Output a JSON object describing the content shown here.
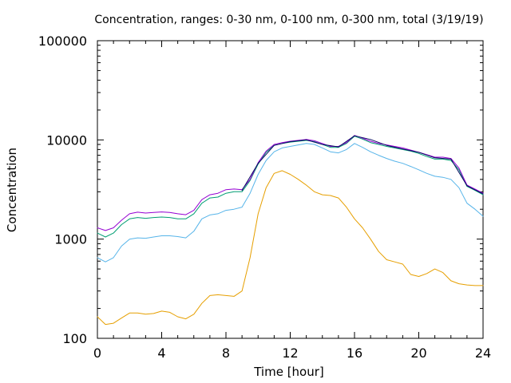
{
  "chart_data": {
    "type": "line",
    "title": "Concentration, ranges: 0-30 nm, 0-100 nm, 0-300 nm, total (3/19/19)",
    "xlabel": "Time [hour]",
    "ylabel": "Concentration",
    "xlim": [
      0,
      24
    ],
    "ylim": [
      100,
      100000
    ],
    "yscale": "log",
    "grid": false,
    "legend": "none",
    "x_ticks": [
      0,
      4,
      8,
      12,
      16,
      20,
      24
    ],
    "x_tick_labels": [
      "0",
      "4",
      "8",
      "12",
      "16",
      "20",
      "24"
    ],
    "y_ticks": [
      100,
      1000,
      10000,
      100000
    ],
    "y_tick_labels": [
      "100",
      "1000",
      "10000",
      "100000"
    ],
    "series": [
      {
        "color": "#e69f00",
        "x": [
          0,
          0.5,
          1,
          1.5,
          2,
          2.5,
          3,
          3.5,
          4,
          4.5,
          5,
          5.5,
          6,
          6.5,
          7,
          7.5,
          8,
          8.5,
          9,
          9.5,
          10,
          10.5,
          11,
          11.5,
          12,
          12.5,
          13,
          13.5,
          14,
          14.5,
          15,
          15.5,
          16,
          16.5,
          17,
          17.5,
          18,
          18.5,
          19,
          19.5,
          20,
          20.5,
          21,
          21.5,
          22,
          22.5,
          23,
          23.5,
          24
        ],
        "y": [
          165,
          138,
          142,
          160,
          180,
          180,
          175,
          178,
          188,
          183,
          165,
          157,
          175,
          225,
          270,
          275,
          270,
          265,
          300,
          650,
          1800,
          3300,
          4600,
          4900,
          4500,
          4000,
          3500,
          3000,
          2800,
          2750,
          2600,
          2100,
          1600,
          1300,
          1000,
          750,
          620,
          590,
          560,
          440,
          420,
          450,
          500,
          460,
          380,
          355,
          345,
          340,
          340
        ]
      },
      {
        "color": "#56b4e9",
        "x": [
          0,
          0.5,
          1,
          1.5,
          2,
          2.5,
          3,
          3.5,
          4,
          4.5,
          5,
          5.5,
          6,
          6.5,
          7,
          7.5,
          8,
          8.5,
          9,
          9.5,
          10,
          10.5,
          11,
          11.5,
          12,
          12.5,
          13,
          13.5,
          14,
          14.5,
          15,
          15.5,
          16,
          16.5,
          17,
          17.5,
          18,
          18.5,
          19,
          19.5,
          20,
          20.5,
          21,
          21.5,
          22,
          22.5,
          23,
          23.5,
          24
        ],
        "y": [
          650,
          590,
          650,
          850,
          1000,
          1030,
          1020,
          1050,
          1080,
          1080,
          1060,
          1030,
          1200,
          1600,
          1750,
          1800,
          1950,
          2000,
          2100,
          2900,
          4500,
          6200,
          7600,
          8300,
          8600,
          8900,
          9200,
          9000,
          8300,
          7600,
          7400,
          8000,
          9200,
          8400,
          7600,
          7000,
          6500,
          6100,
          5800,
          5400,
          5000,
          4600,
          4300,
          4200,
          4000,
          3300,
          2300,
          2000,
          1700
        ]
      },
      {
        "color": "#009e73",
        "x": [
          0,
          0.5,
          1,
          1.5,
          2,
          2.5,
          3,
          3.5,
          4,
          4.5,
          5,
          5.5,
          6,
          6.5,
          7,
          7.5,
          8,
          8.5,
          9,
          9.5,
          10,
          10.5,
          11,
          11.5,
          12,
          12.5,
          13,
          13.5,
          14,
          14.5,
          15,
          15.5,
          16,
          16.5,
          17,
          17.5,
          18,
          18.5,
          19,
          19.5,
          20,
          20.5,
          21,
          21.5,
          22,
          22.5,
          23,
          23.5,
          24
        ],
        "y": [
          1150,
          1050,
          1150,
          1400,
          1600,
          1650,
          1620,
          1650,
          1670,
          1650,
          1600,
          1600,
          1800,
          2300,
          2600,
          2650,
          2900,
          3000,
          3000,
          3900,
          5700,
          7500,
          8800,
          9200,
          9500,
          9700,
          9900,
          9600,
          9000,
          8400,
          8400,
          9200,
          10900,
          10200,
          9400,
          9000,
          8600,
          8300,
          8000,
          7700,
          7300,
          6800,
          6400,
          6400,
          6200,
          5000,
          3400,
          3100,
          2800
        ]
      },
      {
        "color": "#9400d3",
        "x": [
          0,
          0.5,
          1,
          1.5,
          2,
          2.5,
          3,
          3.5,
          4,
          4.5,
          5,
          5.5,
          6,
          6.5,
          7,
          7.5,
          8,
          8.5,
          9,
          9.5,
          10,
          10.5,
          11,
          11.5,
          12,
          12.5,
          13,
          13.5,
          14,
          14.5,
          15,
          15.5,
          16,
          16.5,
          17,
          17.5,
          18,
          18.5,
          19,
          19.5,
          20,
          20.5,
          21,
          21.5,
          22,
          22.5,
          23,
          23.5,
          24
        ],
        "y": [
          1300,
          1220,
          1300,
          1550,
          1800,
          1870,
          1830,
          1860,
          1880,
          1860,
          1800,
          1760,
          1950,
          2500,
          2800,
          2900,
          3150,
          3200,
          3150,
          4000,
          5900,
          7700,
          9000,
          9400,
          9700,
          9900,
          10100,
          9800,
          9200,
          8600,
          8600,
          9400,
          11100,
          10400,
          9700,
          9200,
          8900,
          8600,
          8300,
          7900,
          7500,
          7100,
          6700,
          6700,
          6500,
          5200,
          3500,
          3200,
          2900
        ]
      },
      {
        "color": "#0a0a64",
        "x": [
          9,
          10,
          11,
          12,
          13,
          14,
          15,
          16,
          17,
          18,
          19,
          20,
          21,
          22,
          23,
          24
        ],
        "y": [
          3100,
          5800,
          8800,
          9600,
          10000,
          9000,
          8500,
          11000,
          10100,
          8800,
          8100,
          7500,
          6600,
          6400,
          3450,
          2850
        ]
      }
    ]
  }
}
